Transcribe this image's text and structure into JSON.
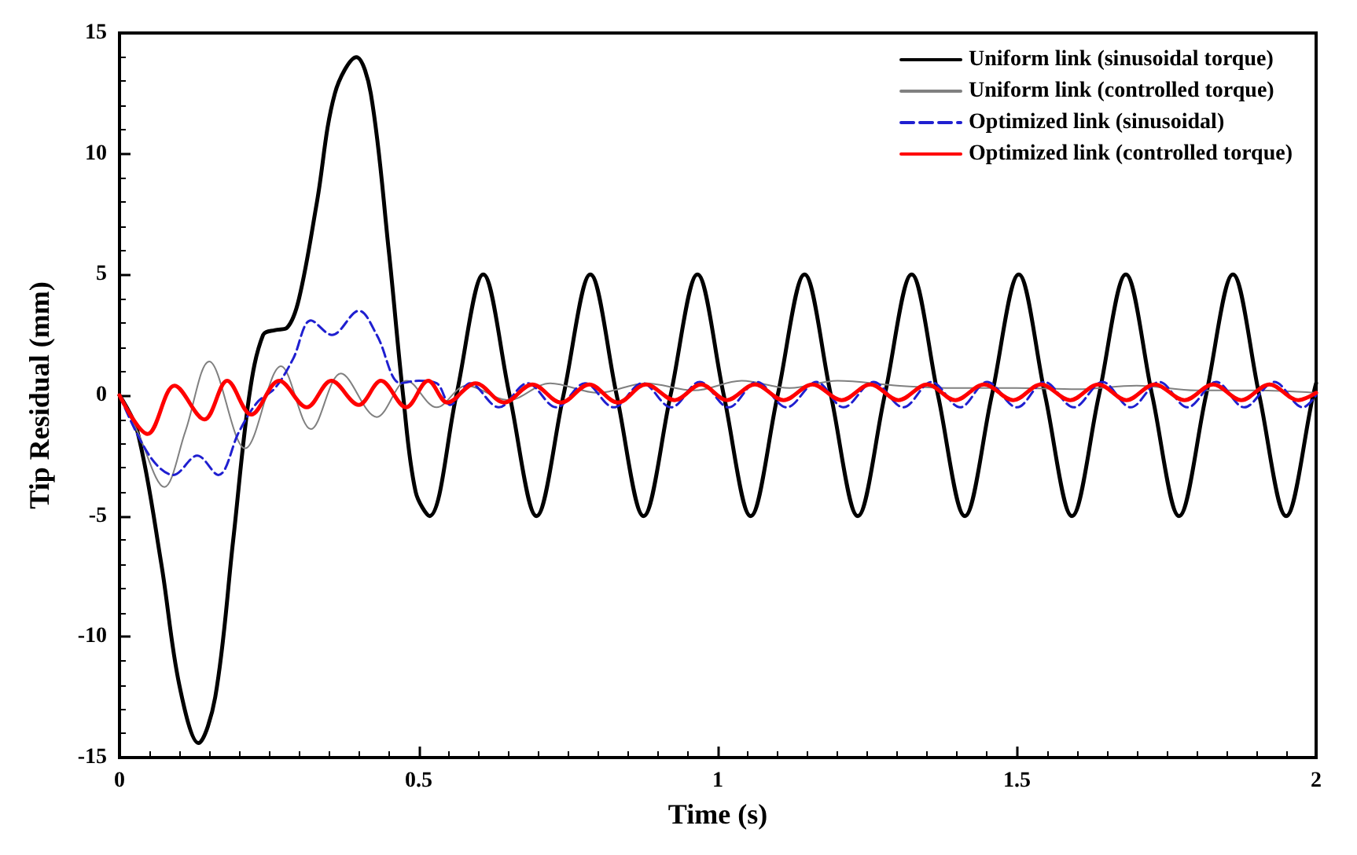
{
  "chart_data": {
    "type": "line",
    "xlabel": "Time (s)",
    "ylabel": "Tip Residual (mm)",
    "xlim": [
      0,
      2
    ],
    "xticks": [
      0,
      0.5,
      1,
      1.5,
      2
    ],
    "ylim": [
      -15,
      15
    ],
    "yticks": [
      -15,
      -10,
      -5,
      0,
      5,
      10,
      15
    ],
    "grid": false,
    "legend": "top right",
    "marker": "none",
    "series": [
      {
        "name": "Uniform link (sinusoidal torque)",
        "color": "#000000",
        "x": [
          0,
          0.03,
          0.07,
          0.1,
          0.132,
          0.16,
          0.19,
          0.217,
          0.24,
          0.26,
          0.28,
          0.3,
          0.33,
          0.36,
          0.396,
          0.42,
          0.45,
          0.474,
          0.495,
          0.518,
          0.563,
          0.608,
          0.652,
          0.697,
          0.742,
          0.787,
          0.831,
          0.876,
          0.921,
          0.966,
          1.01,
          1.055,
          1.1,
          1.145,
          1.189,
          1.234,
          1.279,
          1.324,
          1.368,
          1.413,
          1.458,
          1.503,
          1.547,
          1.592,
          1.637,
          1.682,
          1.726,
          1.771,
          1.816,
          1.861,
          1.905,
          1.95,
          1.995,
          2
        ],
        "values": [
          0,
          -1.5,
          -7,
          -12,
          -14.4,
          -12.5,
          -6,
          0,
          2.5,
          2.7,
          2.8,
          4,
          8,
          12.5,
          14,
          12.5,
          6,
          0,
          -4,
          -5,
          0,
          5,
          0,
          -5,
          0,
          5,
          0,
          -5,
          0,
          5,
          0,
          -5,
          0,
          5,
          0,
          -5,
          0,
          5,
          0,
          -5,
          0,
          5,
          0,
          -5,
          0,
          5,
          0,
          -5,
          0,
          5,
          0,
          -5,
          0,
          0.5
        ]
      },
      {
        "name": "Uniform link (controlled torque)",
        "color": "#808080",
        "x": [
          0,
          0.03,
          0.075,
          0.11,
          0.15,
          0.21,
          0.27,
          0.32,
          0.37,
          0.43,
          0.48,
          0.53,
          0.58,
          0.65,
          0.72,
          0.8,
          0.88,
          0.96,
          1.04,
          1.12,
          1.2,
          1.3,
          1.4,
          1.5,
          1.6,
          1.7,
          1.8,
          1.9,
          2
        ],
        "values": [
          0,
          -1.5,
          -3.8,
          -1.5,
          1.4,
          -2.2,
          1.2,
          -1.4,
          0.9,
          -0.9,
          0.6,
          -0.5,
          0.4,
          -0.2,
          0.5,
          0.1,
          0.5,
          0.2,
          0.6,
          0.3,
          0.6,
          0.4,
          0.3,
          0.3,
          0.25,
          0.4,
          0.2,
          0.2,
          0.1
        ]
      },
      {
        "name": "Optimized link (sinusoidal)",
        "color": "#1f1fd0",
        "line_style": "dashed",
        "x": [
          0,
          0.05,
          0.09,
          0.13,
          0.165,
          0.2,
          0.23,
          0.26,
          0.29,
          0.32,
          0.355,
          0.4,
          0.43,
          0.47,
          0.5,
          0.53,
          0.553,
          0.586,
          0.634,
          0.682,
          0.73,
          0.778,
          0.826,
          0.874,
          0.922,
          0.97,
          1.018,
          1.065,
          1.115,
          1.165,
          1.21,
          1.26,
          1.31,
          1.357,
          1.405,
          1.45,
          1.5,
          1.546,
          1.595,
          1.643,
          1.69,
          1.738,
          1.785,
          1.833,
          1.88,
          1.93,
          1.978,
          2
        ],
        "values": [
          0,
          -2.5,
          -3.3,
          -2.5,
          -3.3,
          -1.5,
          -0.3,
          0.3,
          1.5,
          3.1,
          2.5,
          3.5,
          2.5,
          0.5,
          0.6,
          0.5,
          -0.4,
          0.5,
          -0.5,
          0.5,
          -0.5,
          0.5,
          -0.5,
          0.5,
          -0.5,
          0.55,
          -0.5,
          0.55,
          -0.5,
          0.55,
          -0.5,
          0.55,
          -0.5,
          0.55,
          -0.5,
          0.55,
          -0.5,
          0.55,
          -0.5,
          0.55,
          -0.5,
          0.55,
          -0.5,
          0.55,
          -0.5,
          0.55,
          -0.5,
          0
        ]
      },
      {
        "name": "Optimized link (controlled torque)",
        "color": "#ff0000",
        "x": [
          0,
          0.047,
          0.092,
          0.142,
          0.18,
          0.22,
          0.267,
          0.313,
          0.354,
          0.4,
          0.437,
          0.479,
          0.516,
          0.548,
          0.595,
          0.643,
          0.69,
          0.738,
          0.785,
          0.833,
          0.88,
          0.928,
          0.972,
          1.015,
          1.062,
          1.11,
          1.158,
          1.207,
          1.255,
          1.302,
          1.35,
          1.397,
          1.445,
          1.494,
          1.54,
          1.589,
          1.636,
          1.683,
          1.73,
          1.78,
          1.828,
          1.875,
          1.922,
          1.97,
          2
        ],
        "values": [
          0,
          -1.6,
          0.4,
          -1,
          0.6,
          -0.8,
          0.6,
          -0.5,
          0.6,
          -0.4,
          0.6,
          -0.5,
          0.6,
          -0.3,
          0.5,
          -0.3,
          0.45,
          -0.3,
          0.45,
          -0.3,
          0.45,
          -0.2,
          0.45,
          -0.2,
          0.45,
          -0.2,
          0.45,
          -0.2,
          0.45,
          -0.2,
          0.45,
          -0.2,
          0.45,
          -0.2,
          0.45,
          -0.2,
          0.45,
          -0.2,
          0.45,
          -0.2,
          0.45,
          -0.2,
          0.45,
          -0.2,
          0.1
        ]
      }
    ]
  }
}
